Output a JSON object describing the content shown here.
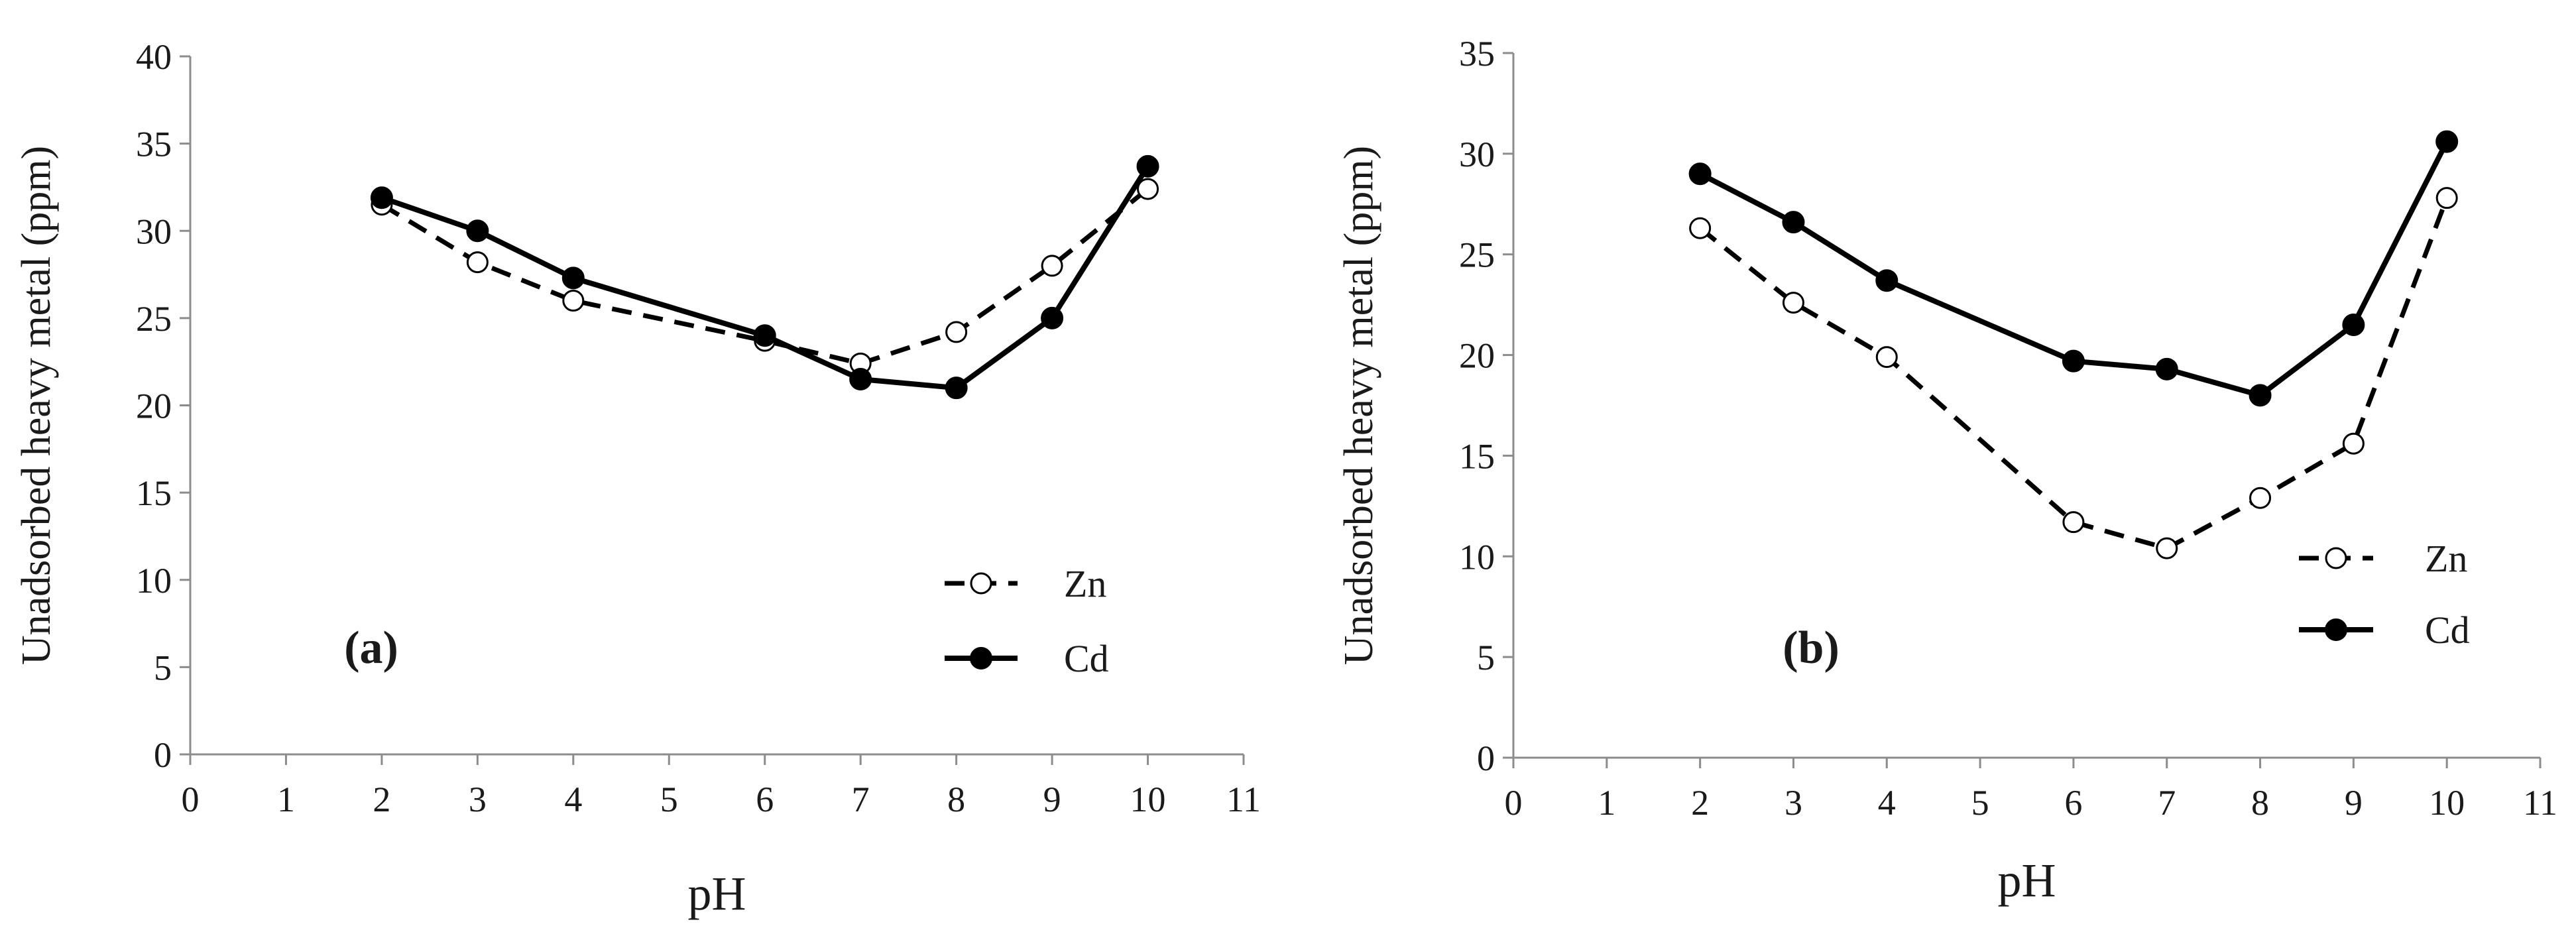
{
  "colors": {
    "axis": "#8c8c8c",
    "line": "#000000",
    "background": "#ffffff"
  },
  "chart_data": [
    {
      "type": "line",
      "panel_label": "(a)",
      "xlabel": "pH",
      "ylabel": "Unadsorbed heavy metal (ppm)",
      "xlim": [
        0,
        11
      ],
      "ylim": [
        0,
        40
      ],
      "xticks": [
        0,
        1,
        2,
        3,
        4,
        5,
        6,
        7,
        8,
        9,
        10,
        11
      ],
      "yticks": [
        0,
        5,
        10,
        15,
        20,
        25,
        30,
        35,
        40
      ],
      "grid": false,
      "legend_position": "bottom-right",
      "series": [
        {
          "name": "Zn",
          "style": "dashed",
          "marker": "open-circle",
          "x": [
            2,
            3,
            4,
            6,
            7,
            8,
            9,
            10
          ],
          "y": [
            31.5,
            28.2,
            26.0,
            23.7,
            22.4,
            24.2,
            28.0,
            32.4
          ]
        },
        {
          "name": "Cd",
          "style": "solid",
          "marker": "filled-circle",
          "x": [
            2,
            3,
            4,
            6,
            7,
            8,
            9,
            10
          ],
          "y": [
            31.9,
            30.0,
            27.3,
            24.0,
            21.5,
            21.0,
            25.0,
            33.7
          ]
        }
      ]
    },
    {
      "type": "line",
      "panel_label": "(b)",
      "xlabel": "pH",
      "ylabel": "Unadsorbed heavy metal (ppm)",
      "xlim": [
        0,
        11
      ],
      "ylim": [
        0,
        35
      ],
      "xticks": [
        0,
        1,
        2,
        3,
        4,
        5,
        6,
        7,
        8,
        9,
        10,
        11
      ],
      "yticks": [
        0,
        5,
        10,
        15,
        20,
        25,
        30,
        35
      ],
      "grid": false,
      "legend_position": "bottom-right",
      "series": [
        {
          "name": "Zn",
          "style": "dashed",
          "marker": "open-circle",
          "x": [
            2,
            3,
            4,
            6,
            7,
            8,
            9,
            10
          ],
          "y": [
            26.3,
            22.6,
            19.9,
            11.7,
            10.4,
            12.9,
            15.6,
            27.8
          ]
        },
        {
          "name": "Cd",
          "style": "solid",
          "marker": "filled-circle",
          "x": [
            2,
            3,
            4,
            6,
            7,
            8,
            9,
            10
          ],
          "y": [
            29.0,
            26.6,
            23.7,
            19.7,
            19.3,
            18.0,
            21.5,
            30.6
          ]
        }
      ]
    }
  ]
}
